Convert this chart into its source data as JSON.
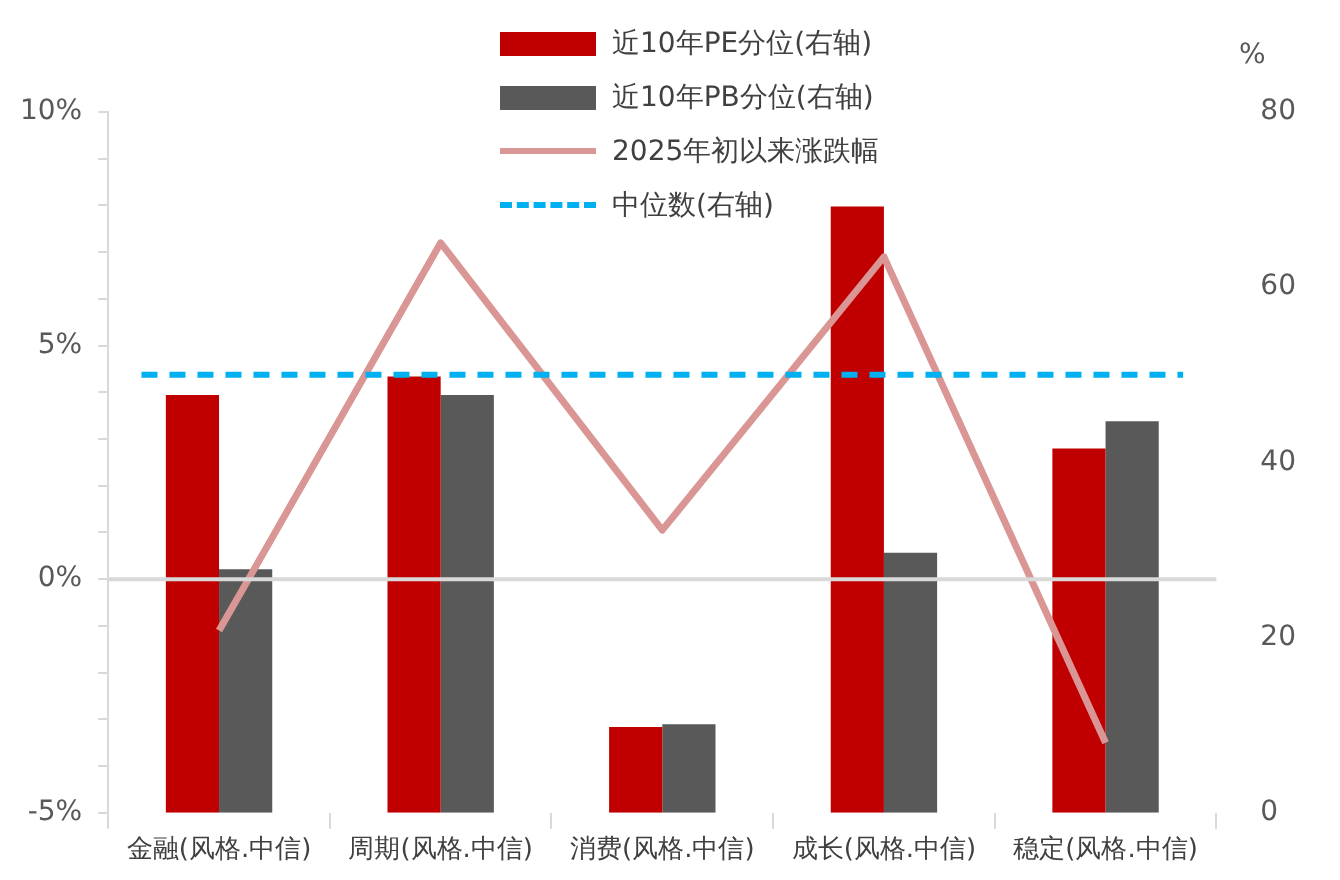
{
  "chart_data": {
    "type": "bar",
    "y2label": "%",
    "categories": [
      "金融(风格.中信)",
      "周期(风格.中信)",
      "消费(风格.中信)",
      "成长(风格.中信)",
      "稳定(风格.中信)"
    ],
    "series": [
      {
        "name": "近10年PE分位(右轴)",
        "axis": "y2",
        "color": "#c00000",
        "values": [
          47.7,
          49.8,
          9.8,
          69.2,
          41.6
        ]
      },
      {
        "name": "近10年PB分位(右轴)",
        "axis": "y2",
        "color": "#595959",
        "values": [
          27.8,
          47.7,
          10.1,
          29.7,
          44.7
        ]
      },
      {
        "name": "2025年初以来涨跌幅",
        "type": "line",
        "axis": "y",
        "color": "#d99694",
        "values": [
          -1.1,
          7.2,
          1.05,
          6.9,
          -3.5
        ]
      }
    ],
    "ylim": [
      -5,
      10
    ],
    "yticks": [
      {
        "value": -5,
        "label": "-5%"
      },
      {
        "value": -4,
        "label": null
      },
      {
        "value": -3,
        "label": null
      },
      {
        "value": -2,
        "label": null
      },
      {
        "value": -1,
        "label": null
      },
      {
        "value": 0,
        "label": "0%"
      },
      {
        "value": 1,
        "label": null
      },
      {
        "value": 2,
        "label": null
      },
      {
        "value": 3,
        "label": null
      },
      {
        "value": 4,
        "label": null
      },
      {
        "value": 5,
        "label": "5%"
      },
      {
        "value": 6,
        "label": null
      },
      {
        "value": 7,
        "label": null
      },
      {
        "value": 8,
        "label": null
      },
      {
        "value": 9,
        "label": null
      },
      {
        "value": 10,
        "label": "10%"
      }
    ],
    "y2lim": [
      0,
      80
    ],
    "y2ticks": [
      0,
      20,
      40,
      60,
      80
    ],
    "ref_lines": [
      {
        "axis": "y2",
        "value": 50,
        "label": "中位数(右轴)",
        "color": "#00b0f0",
        "line_style": "dashed"
      },
      {
        "axis": "y",
        "value": 0,
        "color": "#d9d9d9",
        "line_style": "solid"
      }
    ],
    "grid": false,
    "legend": "top",
    "marker": "none"
  }
}
